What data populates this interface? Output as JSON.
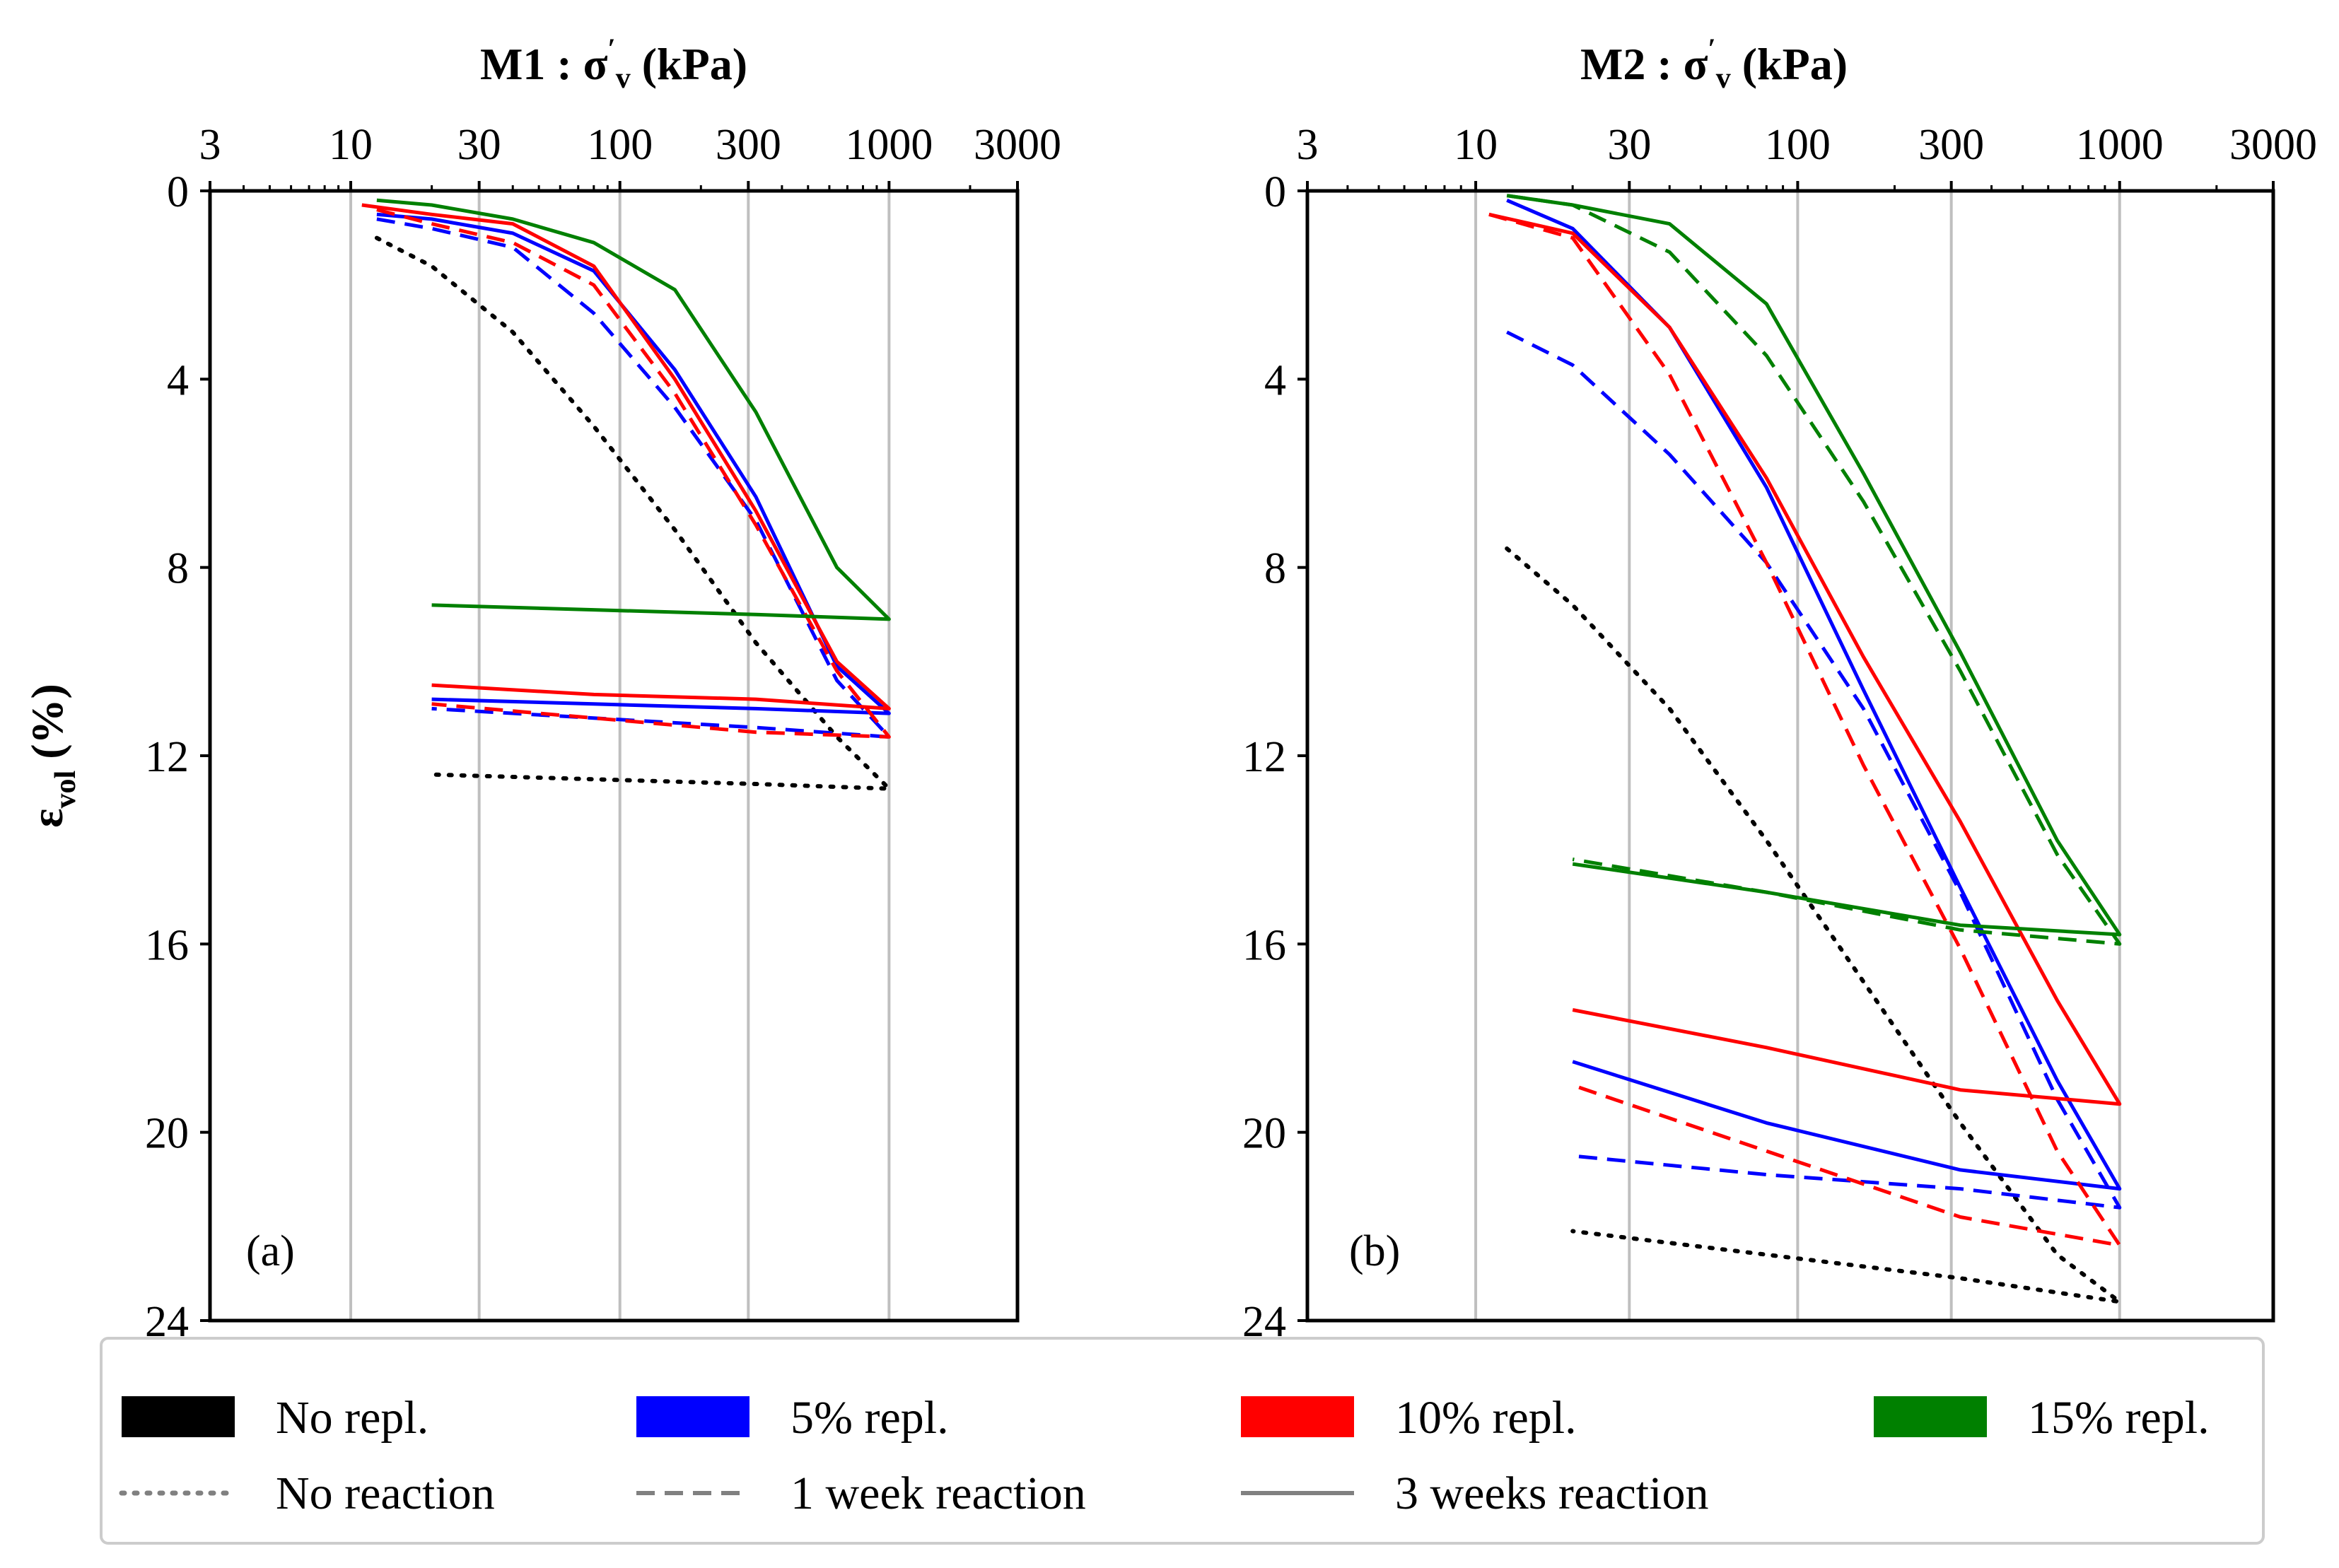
{
  "colors": {
    "none": "#000000",
    "r5": "#0000ff",
    "r10": "#ff0000",
    "r15": "#008000",
    "legend_style_swatch": "#808080",
    "grid": "#bfbfbf"
  },
  "legend": {
    "colors": [
      {
        "key": "none",
        "label": "No repl."
      },
      {
        "key": "r5",
        "label": "5% repl."
      },
      {
        "key": "r10",
        "label": "10% repl."
      },
      {
        "key": "r15",
        "label": "15% repl."
      }
    ],
    "styles": [
      {
        "key": "dotted",
        "label": "No reaction"
      },
      {
        "key": "dashed",
        "label": "1 week reaction"
      },
      {
        "key": "solid",
        "label": "3 weeks reaction"
      }
    ]
  },
  "chart_data": [
    {
      "type": "line",
      "panel_label": "(a)",
      "title_main": "M1 : σ",
      "title_prime": "′",
      "title_sub": "v",
      "title_unit": " (kPa)",
      "x_scale": "log",
      "xlim": [
        3,
        3000
      ],
      "x_ticks": [
        3,
        10,
        30,
        100,
        300,
        1000,
        3000
      ],
      "x_tick_labels": [
        "3",
        "10",
        "30",
        "100",
        "300",
        "1000",
        "3000"
      ],
      "ylabel_main": "ε",
      "ylabel_sub": "vol",
      "ylabel_unit": " (%)",
      "ylim": [
        0,
        24
      ],
      "y_inverted": true,
      "y_ticks": [
        0,
        4,
        8,
        12,
        16,
        20,
        24
      ],
      "y_tick_labels": [
        "0",
        "4",
        "8",
        "12",
        "16",
        "20",
        "24"
      ],
      "grid": "vertical at major x ticks",
      "series": [
        {
          "name": "No repl. – No reaction",
          "color": "none",
          "style": "dotted",
          "x": [
            12.5,
            20,
            40,
            80,
            160,
            320,
            640,
            1000,
            320,
            80,
            20
          ],
          "y": [
            1.0,
            1.6,
            3.0,
            5.0,
            7.2,
            9.6,
            11.6,
            12.7,
            12.6,
            12.5,
            12.4
          ]
        },
        {
          "name": "5% repl. – 1 week",
          "color": "r5",
          "style": "dashed",
          "x": [
            12.5,
            20,
            40,
            80,
            160,
            320,
            640,
            1000,
            320,
            80,
            20
          ],
          "y": [
            0.6,
            0.8,
            1.2,
            2.6,
            4.6,
            7.0,
            10.4,
            11.6,
            11.4,
            11.2,
            11.0
          ]
        },
        {
          "name": "5% repl. – 3 weeks",
          "color": "r5",
          "style": "solid",
          "x": [
            12.5,
            20,
            40,
            80,
            160,
            320,
            640,
            1000,
            320,
            80,
            20
          ],
          "y": [
            0.5,
            0.6,
            0.9,
            1.7,
            3.8,
            6.5,
            10.1,
            11.1,
            11.0,
            10.9,
            10.8
          ]
        },
        {
          "name": "10% repl. – 1 week",
          "color": "r10",
          "style": "dashed",
          "x": [
            12.5,
            20,
            40,
            80,
            160,
            320,
            640,
            1000,
            320,
            80,
            20
          ],
          "y": [
            0.4,
            0.7,
            1.1,
            2.0,
            4.3,
            7.1,
            10.2,
            11.6,
            11.5,
            11.2,
            10.9
          ]
        },
        {
          "name": "10% repl. – 3 weeks",
          "color": "r10",
          "style": "solid",
          "x": [
            11,
            20,
            40,
            80,
            160,
            320,
            640,
            1000,
            320,
            80,
            20
          ],
          "y": [
            0.3,
            0.5,
            0.7,
            1.6,
            4.0,
            6.8,
            10.0,
            11.0,
            10.8,
            10.7,
            10.5
          ]
        },
        {
          "name": "15% repl. – 3 weeks",
          "color": "r15",
          "style": "solid",
          "x": [
            12.5,
            20,
            40,
            80,
            160,
            320,
            640,
            1000,
            320,
            80,
            20
          ],
          "y": [
            0.2,
            0.3,
            0.6,
            1.1,
            2.1,
            4.7,
            8.0,
            9.1,
            9.0,
            8.9,
            8.8
          ]
        }
      ]
    },
    {
      "type": "line",
      "panel_label": "(b)",
      "title_main": "M2 : σ",
      "title_prime": "′",
      "title_sub": "v",
      "title_unit": " (kPa)",
      "x_scale": "log",
      "xlim": [
        3,
        3000
      ],
      "x_ticks": [
        3,
        10,
        30,
        100,
        300,
        1000,
        3000
      ],
      "x_tick_labels": [
        "3",
        "10",
        "30",
        "100",
        "300",
        "1000",
        "3000"
      ],
      "ylim": [
        0,
        24
      ],
      "y_inverted": true,
      "y_ticks": [
        0,
        4,
        8,
        12,
        16,
        20,
        24
      ],
      "y_tick_labels": [
        "0",
        "4",
        "8",
        "12",
        "16",
        "20",
        "24"
      ],
      "grid": "vertical at major x ticks",
      "series": [
        {
          "name": "No repl. – No reaction",
          "color": "none",
          "style": "dotted",
          "x": [
            12.5,
            20,
            40,
            80,
            160,
            320,
            640,
            1000,
            320,
            80,
            20
          ],
          "y": [
            7.6,
            8.8,
            11.0,
            13.8,
            16.8,
            19.8,
            22.6,
            23.6,
            23.1,
            22.6,
            22.1
          ]
        },
        {
          "name": "5% repl. – 1 week",
          "color": "r5",
          "style": "dashed",
          "x": [
            12.5,
            20,
            40,
            80,
            160,
            320,
            640,
            1000,
            320,
            80,
            20
          ],
          "y": [
            3.0,
            3.7,
            5.6,
            7.9,
            11.0,
            14.9,
            19.3,
            21.6,
            21.2,
            20.9,
            20.5
          ]
        },
        {
          "name": "5% repl. – 3 weeks",
          "color": "r5",
          "style": "solid",
          "x": [
            12.5,
            20,
            40,
            80,
            160,
            320,
            640,
            1000,
            320,
            80,
            20
          ],
          "y": [
            0.2,
            0.8,
            2.9,
            6.3,
            10.6,
            14.8,
            18.9,
            21.2,
            20.8,
            19.8,
            18.5
          ]
        },
        {
          "name": "10% repl. – 1 week",
          "color": "r10",
          "style": "dashed",
          "x": [
            11,
            20,
            40,
            80,
            160,
            320,
            640,
            1000,
            320,
            80,
            20
          ],
          "y": [
            0.5,
            1.0,
            3.9,
            7.9,
            12.2,
            16.1,
            20.4,
            22.4,
            21.8,
            20.4,
            19.0
          ]
        },
        {
          "name": "10% repl. – 3 weeks",
          "color": "r10",
          "style": "solid",
          "x": [
            11,
            20,
            40,
            80,
            160,
            320,
            640,
            1000,
            320,
            80,
            20
          ],
          "y": [
            0.5,
            0.9,
            2.9,
            6.1,
            9.9,
            13.4,
            17.2,
            19.4,
            19.1,
            18.2,
            17.4
          ]
        },
        {
          "name": "15% repl. – 1 week",
          "color": "r15",
          "style": "dashed",
          "x": [
            12.5,
            20,
            40,
            80,
            160,
            320,
            640,
            1000,
            320,
            80,
            20
          ],
          "y": [
            0.1,
            0.3,
            1.3,
            3.5,
            6.6,
            10.2,
            14.1,
            16.0,
            15.7,
            14.9,
            14.2
          ]
        },
        {
          "name": "15% repl. – 3 weeks",
          "color": "r15",
          "style": "solid",
          "x": [
            12.5,
            20,
            40,
            80,
            160,
            320,
            640,
            1000,
            320,
            80,
            20
          ],
          "y": [
            0.1,
            0.3,
            0.7,
            2.4,
            6.0,
            9.8,
            13.8,
            15.8,
            15.6,
            14.9,
            14.3
          ]
        }
      ]
    }
  ]
}
